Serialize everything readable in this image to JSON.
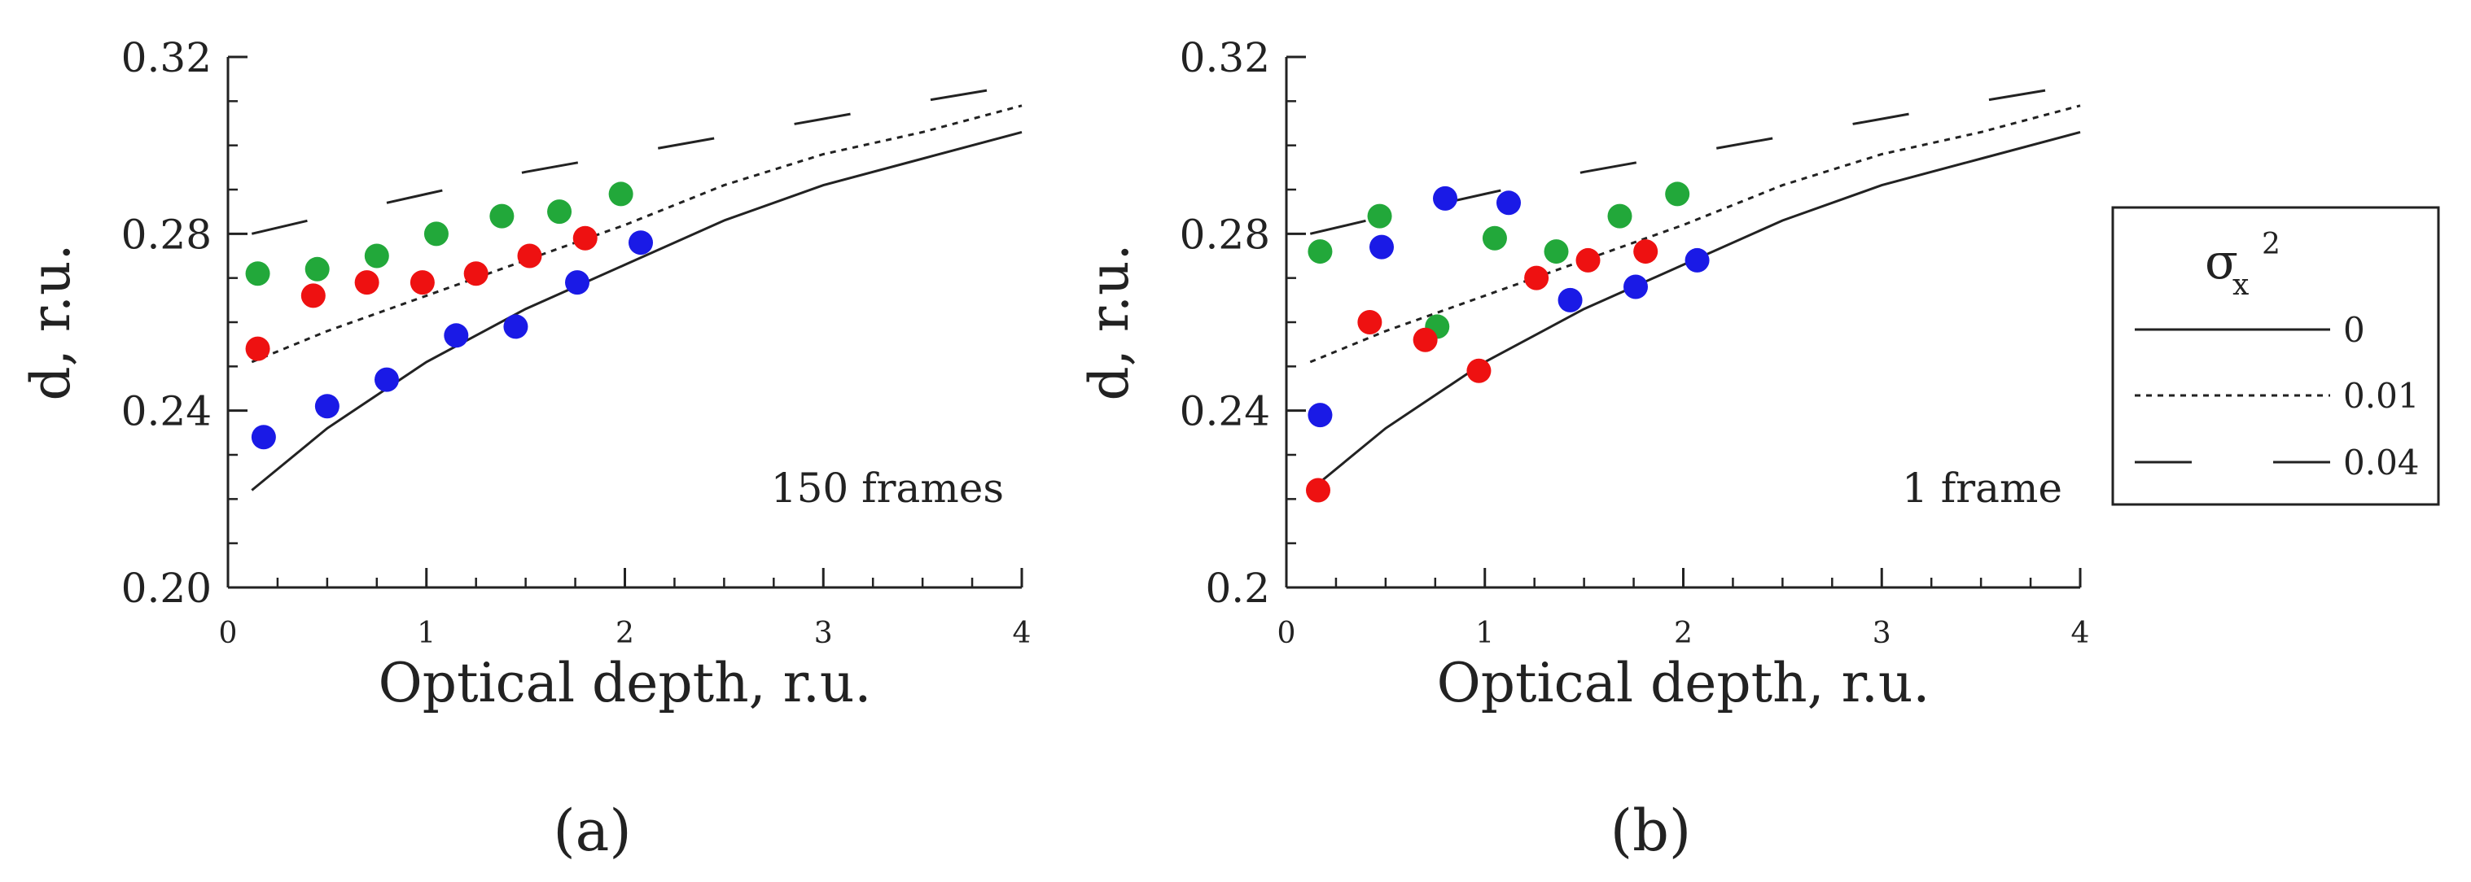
{
  "figure": {
    "legend": {
      "title_symbol": "σ",
      "title_subscript": "x",
      "title_superscript": "2",
      "entries": [
        {
          "label": "0",
          "style": "solid"
        },
        {
          "label": "0.01",
          "style": "dotted"
        },
        {
          "label": "0.04",
          "style": "dashed"
        }
      ]
    }
  },
  "chart_data": [
    {
      "type": "scatter",
      "panel_label": "(a)",
      "annotation": "150 frames",
      "xlabel": "Optical depth, r.u.",
      "ylabel": "d, r.u.",
      "xlim": [
        0,
        4
      ],
      "ylim": [
        0.2,
        0.32
      ],
      "xticks": [
        "0",
        "1",
        "2",
        "3",
        "4"
      ],
      "yticks": [
        "0.20",
        "0.24",
        "0.28",
        "0.32"
      ],
      "grid": false,
      "colors": {
        "blue": "#1a1ae6",
        "red": "#ee1111",
        "green": "#22a83a"
      },
      "series": [
        {
          "color": "green",
          "x": [
            0.15,
            0.45,
            0.75,
            1.05,
            1.38,
            1.67,
            1.98
          ],
          "y": [
            0.271,
            0.272,
            0.275,
            0.28,
            0.284,
            0.285,
            0.289
          ]
        },
        {
          "color": "red",
          "x": [
            0.15,
            0.43,
            0.7,
            0.98,
            1.25,
            1.52,
            1.8
          ],
          "y": [
            0.254,
            0.266,
            0.269,
            0.269,
            0.271,
            0.275,
            0.279
          ]
        },
        {
          "color": "blue",
          "x": [
            0.18,
            0.5,
            0.8,
            1.15,
            1.45,
            1.76,
            2.08
          ],
          "y": [
            0.234,
            0.241,
            0.247,
            0.257,
            0.259,
            0.269,
            0.278
          ]
        }
      ],
      "curves": [
        {
          "style": "solid",
          "x": [
            0.12,
            0.5,
            1.0,
            1.5,
            2.0,
            2.5,
            3.0,
            3.5,
            4.0
          ],
          "y": [
            0.222,
            0.236,
            0.251,
            0.263,
            0.273,
            0.283,
            0.291,
            0.297,
            0.303
          ]
        },
        {
          "style": "dotted",
          "x": [
            0.12,
            0.5,
            1.0,
            1.5,
            2.0,
            2.5,
            3.0,
            3.5,
            4.0
          ],
          "y": [
            0.251,
            0.258,
            0.266,
            0.274,
            0.282,
            0.291,
            0.298,
            0.303,
            0.309
          ]
        },
        {
          "style": "dashed",
          "x": [
            0.12,
            0.5,
            1.0,
            1.5,
            2.0,
            2.5,
            3.0,
            3.5,
            3.9
          ],
          "y": [
            0.28,
            0.284,
            0.289,
            0.294,
            0.298,
            0.302,
            0.306,
            0.31,
            0.313
          ]
        }
      ]
    },
    {
      "type": "scatter",
      "panel_label": "(b)",
      "annotation": "1 frame",
      "xlabel": "Optical depth, r.u.",
      "ylabel": "d, r.u.",
      "xlim": [
        0,
        4
      ],
      "ylim": [
        0.2,
        0.32
      ],
      "xticks": [
        "0",
        "1",
        "2",
        "3",
        "4"
      ],
      "yticks": [
        "0.2",
        "0.24",
        "0.28",
        "0.32"
      ],
      "grid": false,
      "colors": {
        "blue": "#1a1ae6",
        "red": "#ee1111",
        "green": "#22a83a"
      },
      "series": [
        {
          "color": "green",
          "x": [
            0.17,
            0.47,
            0.76,
            1.05,
            1.36,
            1.68,
            1.97
          ],
          "y": [
            0.276,
            0.284,
            0.259,
            0.279,
            0.276,
            0.284,
            0.289
          ]
        },
        {
          "color": "red",
          "x": [
            0.16,
            0.42,
            0.7,
            0.97,
            1.26,
            1.52,
            1.81
          ],
          "y": [
            0.222,
            0.26,
            0.256,
            0.249,
            0.27,
            0.274,
            0.276
          ]
        },
        {
          "color": "blue",
          "x": [
            0.17,
            0.48,
            0.8,
            1.12,
            1.43,
            1.76,
            2.07
          ],
          "y": [
            0.239,
            0.277,
            0.288,
            0.287,
            0.265,
            0.268,
            0.274
          ]
        }
      ],
      "curves": [
        {
          "style": "solid",
          "x": [
            0.12,
            0.5,
            1.0,
            1.5,
            2.0,
            2.5,
            3.0,
            3.5,
            4.0
          ],
          "y": [
            0.222,
            0.236,
            0.251,
            0.263,
            0.273,
            0.283,
            0.291,
            0.297,
            0.303
          ]
        },
        {
          "style": "dotted",
          "x": [
            0.12,
            0.5,
            1.0,
            1.5,
            2.0,
            2.5,
            3.0,
            3.5,
            4.0
          ],
          "y": [
            0.251,
            0.258,
            0.266,
            0.274,
            0.282,
            0.291,
            0.298,
            0.303,
            0.309
          ]
        },
        {
          "style": "dashed",
          "x": [
            0.12,
            0.5,
            1.0,
            1.5,
            2.0,
            2.5,
            3.0,
            3.5,
            3.9
          ],
          "y": [
            0.28,
            0.284,
            0.289,
            0.294,
            0.298,
            0.302,
            0.306,
            0.31,
            0.313
          ]
        }
      ]
    }
  ]
}
